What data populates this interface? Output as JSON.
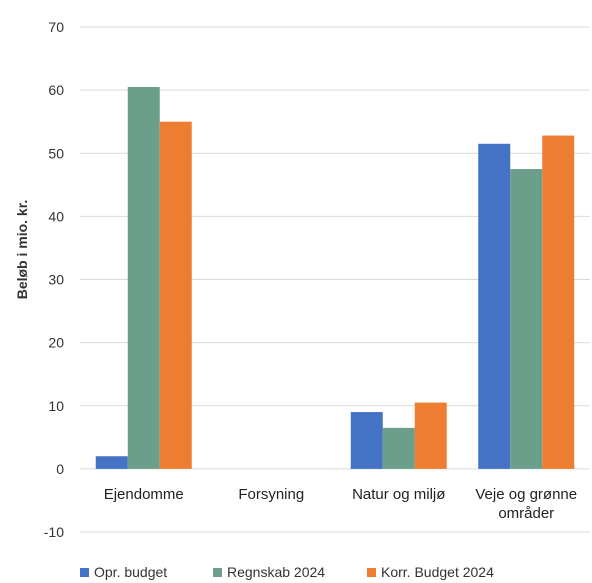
{
  "chart_data": {
    "type": "bar",
    "title": "",
    "xlabel": "",
    "ylabel": "Beløb i mio. kr.",
    "ylim": [
      -10,
      70
    ],
    "yticks": [
      -10,
      0,
      10,
      20,
      30,
      40,
      50,
      60,
      70
    ],
    "grid": true,
    "legend_position": "bottom",
    "categories": [
      [
        "Ejendomme"
      ],
      [
        "Forsyning"
      ],
      [
        "Natur og miljø"
      ],
      [
        "Veje og grønne",
        "områder"
      ]
    ],
    "series": [
      {
        "name": "Opr. budget",
        "color": "#4472c4",
        "values": [
          2,
          0,
          9,
          51.5
        ]
      },
      {
        "name": "Regnskab 2024",
        "color": "#6c9e8c",
        "values": [
          60.5,
          0,
          6.5,
          47.5
        ]
      },
      {
        "name": "Korr. Budget 2024",
        "color": "#ed7d31",
        "values": [
          55,
          0,
          10.5,
          52.8
        ]
      }
    ]
  }
}
